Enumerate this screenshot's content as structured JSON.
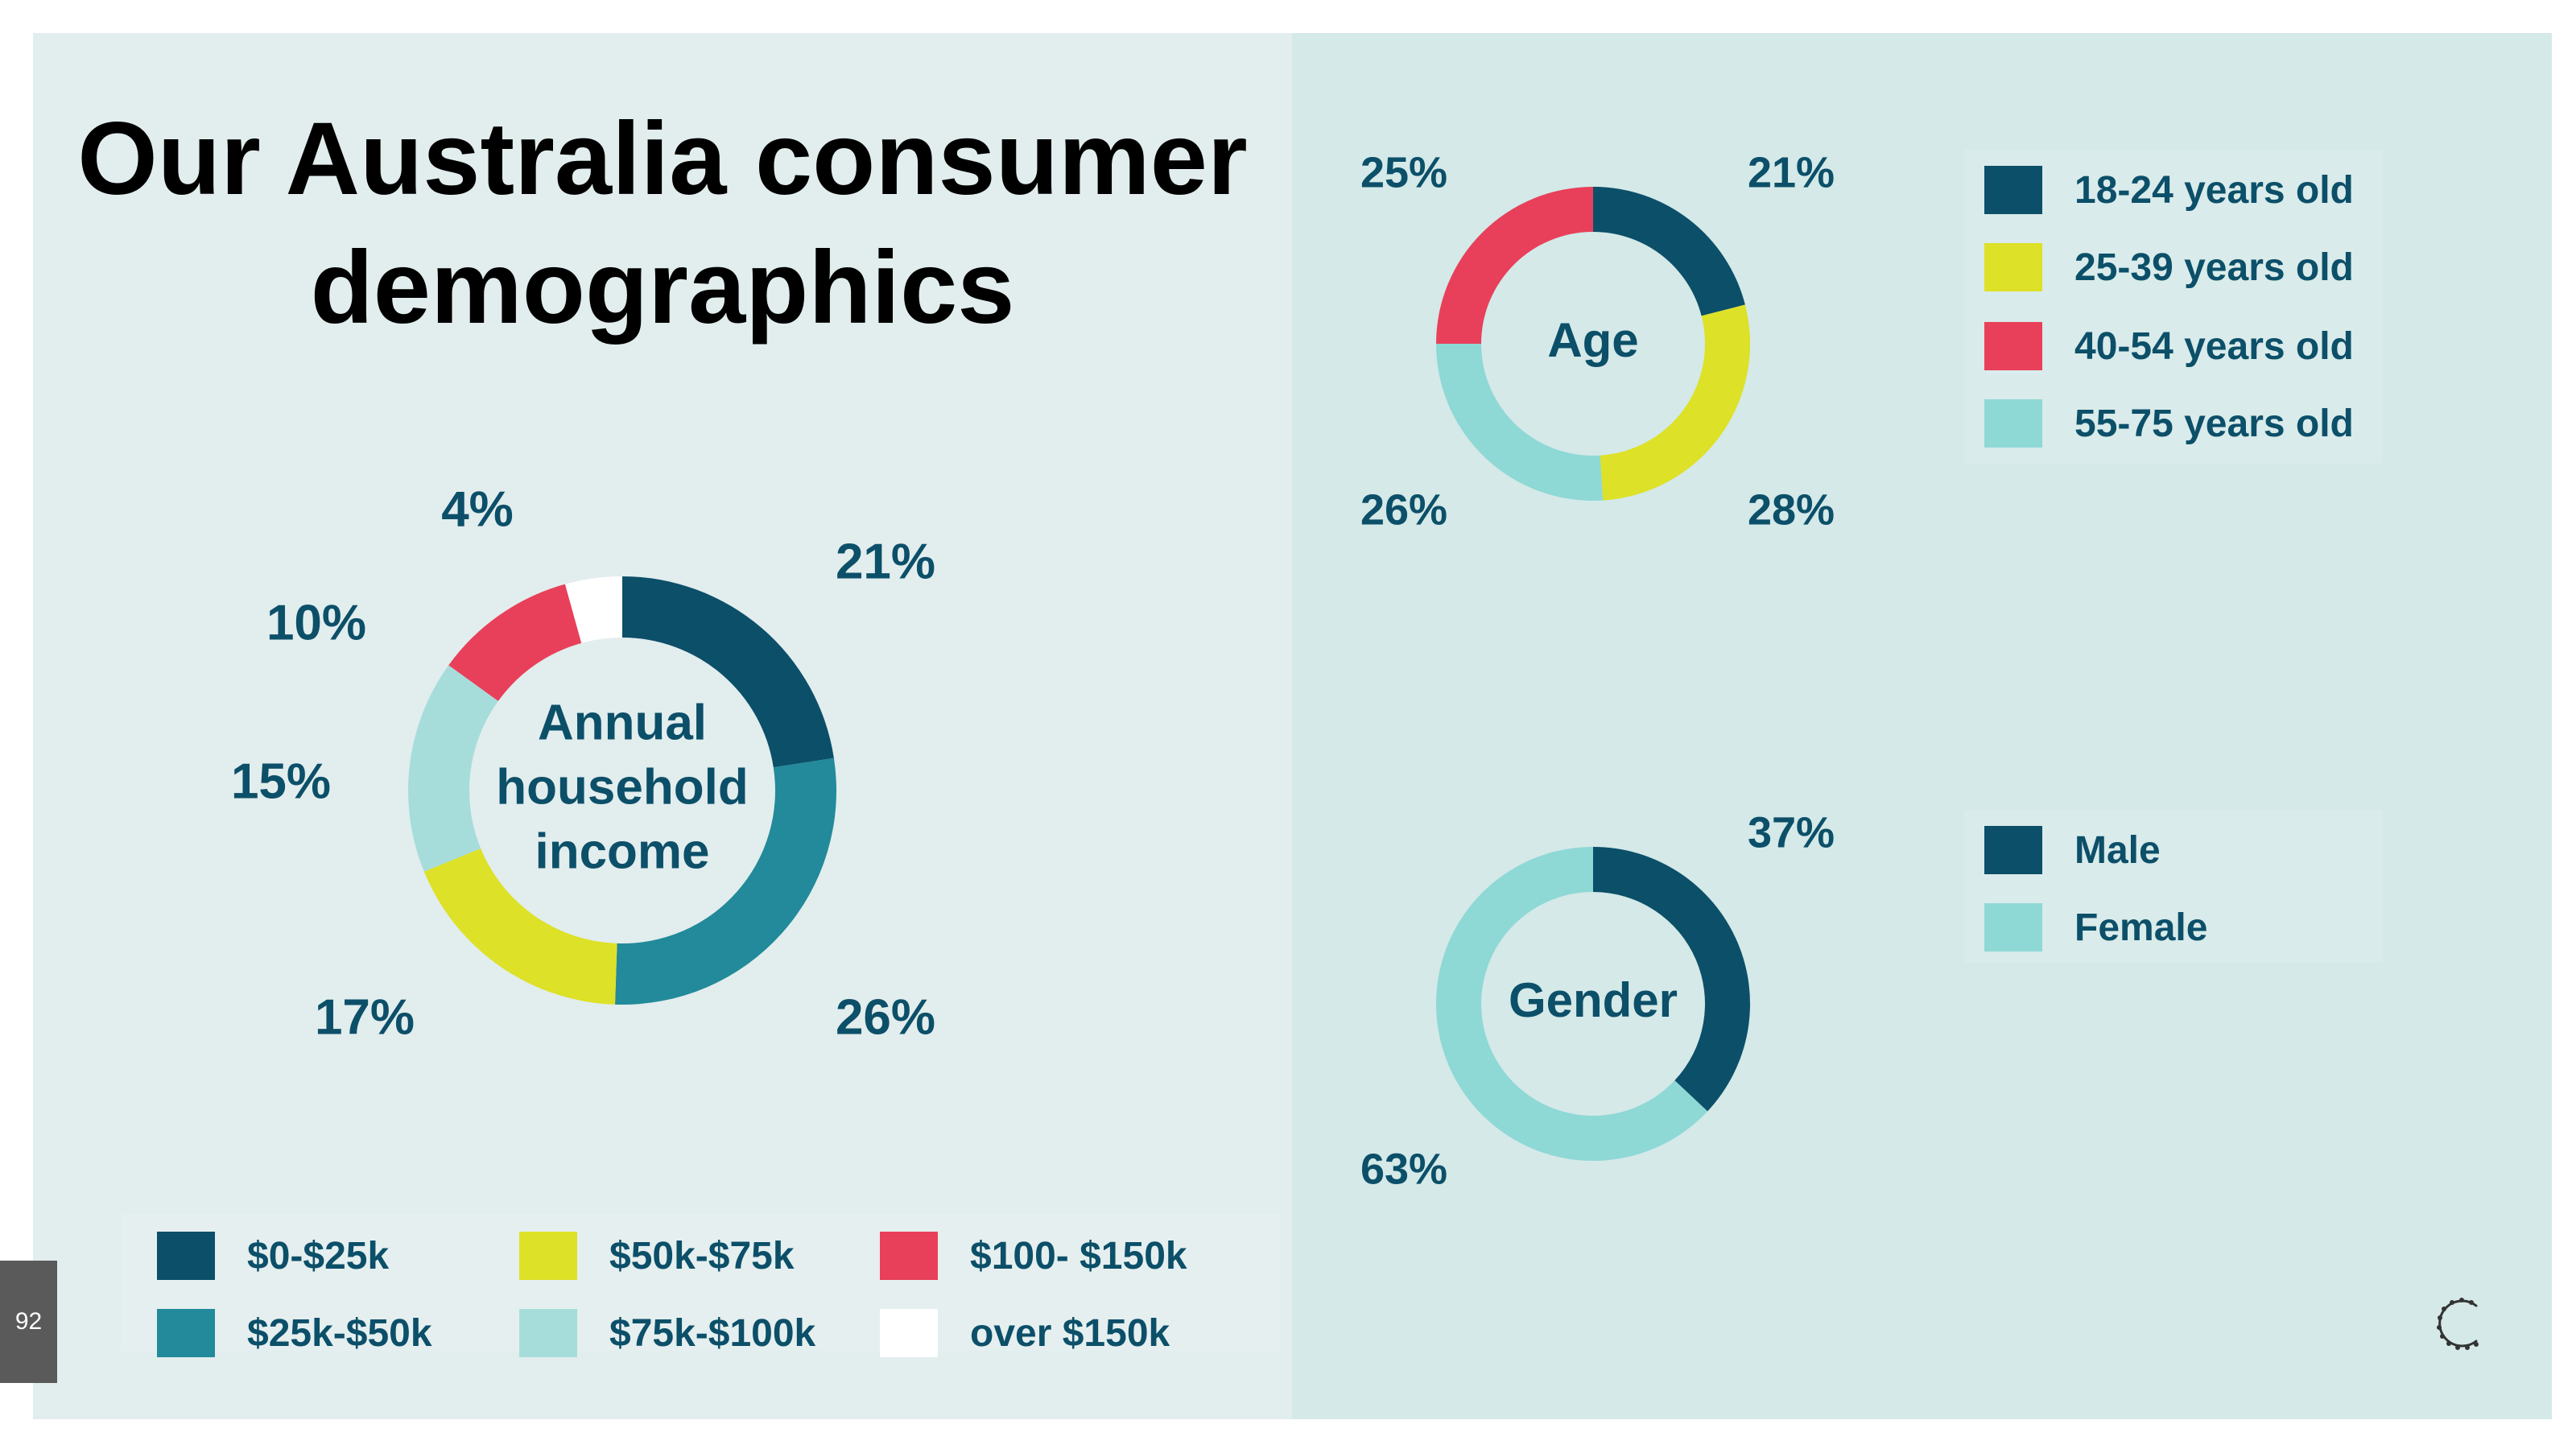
{
  "title": {
    "line1": "Our Australia consumer",
    "line2": "demographics"
  },
  "page_number": "92",
  "logo_icon": "wreath-c-logo-icon",
  "colors": {
    "dark_teal": "#0c4f69",
    "teal": "#228a9a",
    "yellow": "#dde127",
    "red": "#e8405a",
    "light_teal": "#8ed8d5",
    "pale_teal": "#a6dddb",
    "white": "#ffffff"
  },
  "chart_data": [
    {
      "type": "pie",
      "center_label": [
        "Annual",
        "household",
        "income"
      ],
      "categories": [
        "$0-$25k",
        "$25k-$50k",
        "$50k-$75k",
        "$75k-$100k",
        "$100- $150k",
        "over $150k"
      ],
      "values": [
        21,
        26,
        17,
        15,
        10,
        4
      ],
      "data_labels": [
        "21%",
        "26%",
        "17%",
        "15%",
        "10%",
        "4%"
      ],
      "colors": [
        "#0c4f69",
        "#228a9a",
        "#dde127",
        "#a6dddb",
        "#e8405a",
        "#ffffff"
      ],
      "legend": [
        "$0-$25k",
        "$50k-$75k",
        "$100- $150k",
        "$25k-$50k",
        "$75k-$100k",
        "over $150k"
      ],
      "legend_placement": "bottom"
    },
    {
      "type": "pie",
      "center_label": [
        "Age"
      ],
      "categories": [
        "18-24 years old",
        "25-39 years old",
        "40-54 years old",
        "55-75 years old"
      ],
      "values": [
        21,
        28,
        25,
        26
      ],
      "slice_order": [
        0,
        1,
        3,
        2
      ],
      "data_labels": [
        "21%",
        "28%",
        "25%",
        "26%"
      ],
      "colors": [
        "#0c4f69",
        "#dde127",
        "#e8405a",
        "#8ed8d5"
      ],
      "legend": [
        "18-24 years old",
        "25-39 years old",
        "40-54 years old",
        "55-75 years old"
      ],
      "legend_placement": "right"
    },
    {
      "type": "pie",
      "center_label": [
        "Gender"
      ],
      "categories": [
        "Male",
        "Female"
      ],
      "values": [
        37,
        63
      ],
      "data_labels": [
        "37%",
        "63%"
      ],
      "colors": [
        "#0c4f69",
        "#8ed8d5"
      ],
      "legend": [
        "Male",
        "Female"
      ],
      "legend_placement": "right"
    }
  ]
}
